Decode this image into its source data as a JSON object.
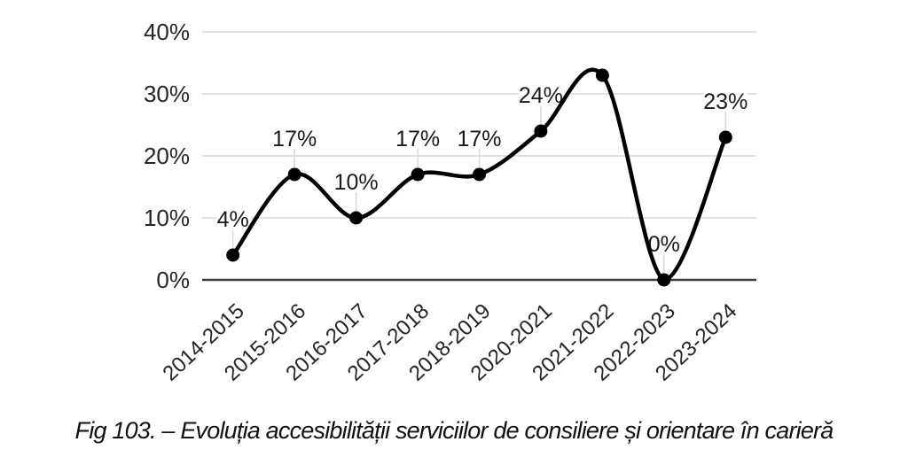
{
  "figure": {
    "caption": "Fig 103. – Evoluția accesibilității serviciilor de consiliere și orientare în carieră"
  },
  "chart_data": {
    "type": "line",
    "title": "",
    "xlabel": "",
    "ylabel": "",
    "categories": [
      "2014-2015",
      "2015-2016",
      "2016-2017",
      "2017-2018",
      "2018-2019",
      "2020-2021",
      "2021-2022",
      "2022-2023",
      "2023-2024"
    ],
    "values": [
      4,
      17,
      10,
      17,
      17,
      24,
      33,
      0,
      23
    ],
    "point_labels": [
      "4%",
      "17%",
      "10%",
      "17%",
      "17%",
      "24%",
      "",
      "0%",
      "23%"
    ],
    "yticks": [
      {
        "value": 0,
        "label": "0%"
      },
      {
        "value": 10,
        "label": "10%"
      },
      {
        "value": 20,
        "label": "20%"
      },
      {
        "value": 30,
        "label": "30%"
      },
      {
        "value": 40,
        "label": "40%"
      }
    ],
    "ylim": [
      0,
      40
    ],
    "grid": true,
    "legend": false,
    "smooth": true,
    "colors": {
      "line": "#000000",
      "marker": "#000000",
      "grid": "#d9d9d9",
      "axis": "#3d3d3d",
      "leader": "#d9d9d9",
      "text": "#262626"
    }
  }
}
